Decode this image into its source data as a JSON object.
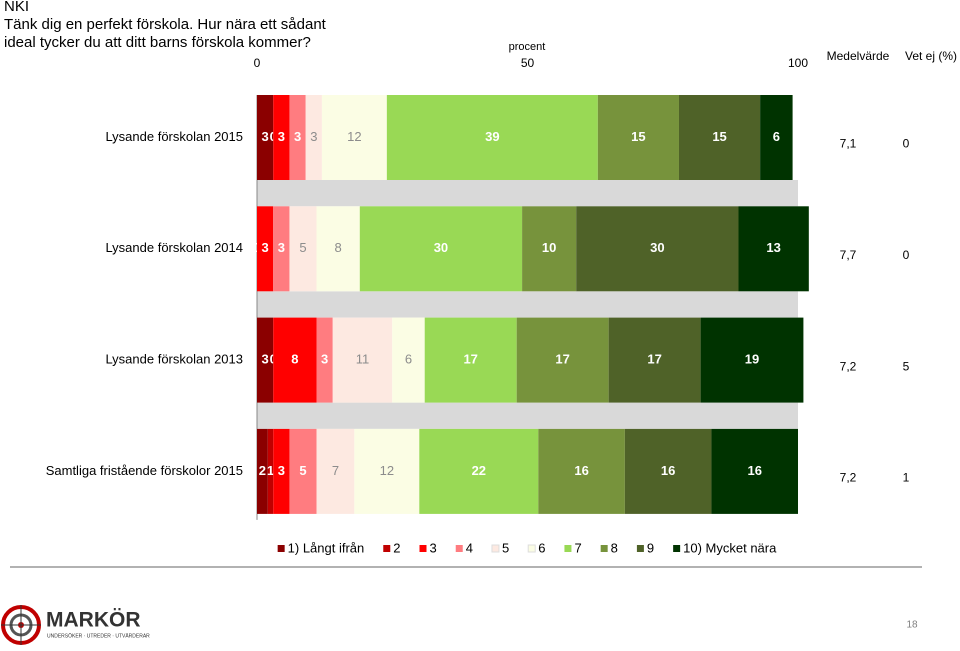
{
  "chart_data": {
    "type": "stacked-bar-horizontal",
    "title": "NKI",
    "subtitle": [
      "Tänk dig en perfekt förskola. Hur nära ett sådant",
      "ideal tycker du att ditt barns förskola kommer?"
    ],
    "x_axis_label": "procent",
    "xlim": [
      0,
      100
    ],
    "xticks": [
      0,
      50,
      100
    ],
    "categories": [
      "Lysande förskolan 2015",
      "Lysande förskolan 2014",
      "Lysande förskolan 2013",
      "Samtliga fristående förskolor 2015"
    ],
    "series": [
      {
        "name": "1) Långt ifrån",
        "color": "#8b0000",
        "label_color": "#ffffff",
        "values": [
          3,
          null,
          3,
          2
        ]
      },
      {
        "name": "2",
        "color": "#c00000",
        "label_color": "#ffffff",
        "values": [
          0,
          0,
          0,
          1
        ]
      },
      {
        "name": "3",
        "color": "#ff0000",
        "label_color": "#ffffff",
        "values": [
          3,
          3,
          8,
          3
        ]
      },
      {
        "name": "4",
        "color": "#ff7c80",
        "label_color": "#ffffff",
        "values": [
          3,
          3,
          3,
          5
        ]
      },
      {
        "name": "5",
        "color": "#fde9e1",
        "label_color": "#8c8c8c",
        "values": [
          3,
          5,
          11,
          7
        ]
      },
      {
        "name": "6",
        "color": "#fbfde4",
        "label_color": "#8c8c8c",
        "values": [
          12,
          8,
          6,
          12
        ]
      },
      {
        "name": "7",
        "color": "#99d955",
        "label_color": "#ffffff",
        "values": [
          39,
          30,
          17,
          22
        ]
      },
      {
        "name": "8",
        "color": "#77933c",
        "label_color": "#ffffff",
        "values": [
          15,
          10,
          17,
          16
        ]
      },
      {
        "name": "9",
        "color": "#4f6228",
        "label_color": "#ffffff",
        "values": [
          15,
          30,
          17,
          16
        ]
      },
      {
        "name": "10) Mycket nära",
        "color": "#003300",
        "label_color": "#ffffff",
        "values": [
          6,
          13,
          19,
          16
        ]
      }
    ],
    "table": {
      "headers": [
        "Medelvärde",
        "Vet ej (%)"
      ],
      "rows": [
        [
          "7,1",
          0
        ],
        [
          "7,7",
          0
        ],
        [
          "7,2",
          5
        ],
        [
          "7,2",
          1
        ]
      ]
    }
  },
  "footer": {
    "logo": "MARKÖR",
    "logo_tagline": "UNDERSÖKER · UTREDER · UTVÄRDERAR",
    "page_number": "18"
  }
}
